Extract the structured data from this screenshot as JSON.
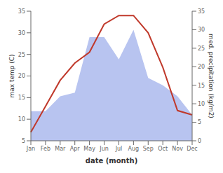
{
  "chart_data": {
    "type": "line",
    "categories": [
      "Jan",
      "Feb",
      "Mar",
      "Apr",
      "May",
      "Jun",
      "Jul",
      "Aug",
      "Sep",
      "Oct",
      "Nov",
      "Dec"
    ],
    "series": [
      {
        "type": "line",
        "color": "#c0392b",
        "values": [
          7,
          13,
          19,
          23,
          25.5,
          32,
          34,
          34,
          30,
          22,
          12,
          11
        ]
      },
      {
        "type": "area",
        "color": "#b8c4f0",
        "axis": "y2",
        "values": [
          8,
          8,
          12,
          13,
          28,
          28,
          22,
          30,
          17,
          15,
          12,
          7
        ]
      }
    ],
    "xlabel": "date (month)",
    "ylabel": "max temp (C)",
    "y2label": "med. precipitation (kg/m2)",
    "ylim": [
      5,
      35
    ],
    "yticks": [
      5,
      10,
      15,
      20,
      25,
      30,
      35
    ],
    "y2lim": [
      0,
      35
    ],
    "y2ticks": [
      0,
      5,
      10,
      15,
      20,
      25,
      30,
      35
    ],
    "grid": false
  }
}
